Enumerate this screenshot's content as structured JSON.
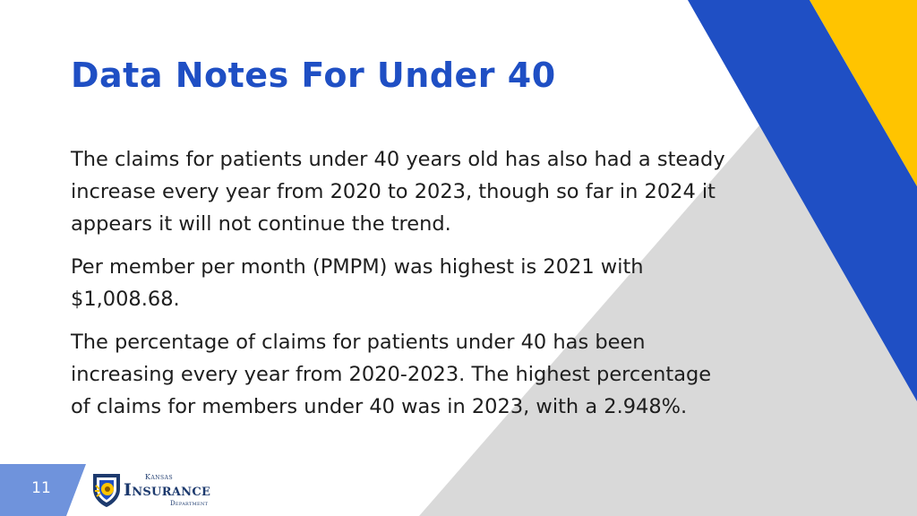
{
  "slide": {
    "title": "Data Notes For Under 40",
    "paragraphs": [
      "The claims for patients under 40 years old has also had a steady increase every year from 2020 to 2023, though so far in 2024 it appears it will not continue the trend.",
      "Per member per month (PMPM) was highest is 2021 with $1,008.68.",
      "The percentage of claims for patients under 40 has been increasing every year from 2020-2023. The highest percentage of claims for members under 40 was in 2023, with a 2.948%."
    ],
    "page_number": "11"
  },
  "logo": {
    "line1": "Kansas",
    "line2": "Insurance",
    "line3": "Department"
  },
  "colors": {
    "title": "#1f4fc4",
    "text": "#1e1e1e",
    "accent_blue": "#1f4fc4",
    "accent_yellow": "#ffc400",
    "accent_gray": "#d9d9d9",
    "page_box": "#6f93dc"
  }
}
